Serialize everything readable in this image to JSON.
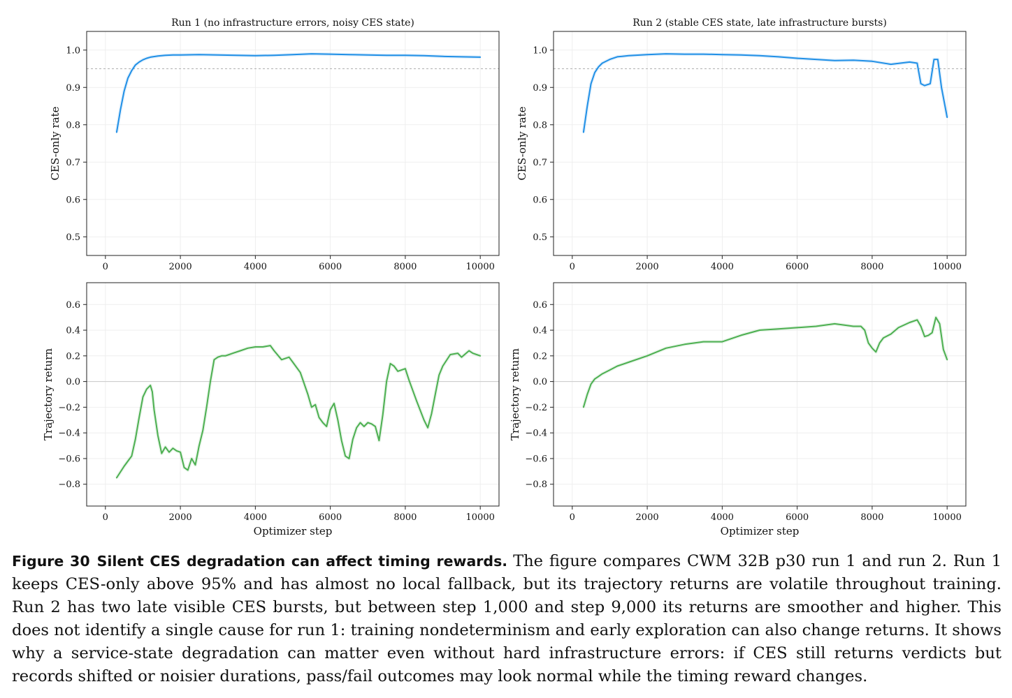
{
  "chart_data": [
    {
      "type": "line",
      "title": "Run 1 (no infrastructure errors, noisy CES state)",
      "xlabel": "",
      "ylabel": "CES-only rate",
      "xlim": [
        -500,
        10500
      ],
      "ylim": [
        0.45,
        1.05
      ],
      "xticks": [
        "0",
        "2000",
        "4000",
        "6000",
        "8000",
        "10000"
      ],
      "yticks": [
        "0.5",
        "0.6",
        "0.7",
        "0.8",
        "0.9",
        "1.0"
      ],
      "grid": true,
      "reference_line": 0.95,
      "series": [
        {
          "name": "",
          "color": "#1f8fe6",
          "x": [
            300,
            400,
            500,
            600,
            700,
            800,
            900,
            1000,
            1100,
            1200,
            1400,
            1600,
            1800,
            2000,
            2500,
            3000,
            3500,
            4000,
            4500,
            5000,
            5500,
            6000,
            6500,
            7000,
            7500,
            8000,
            8500,
            9000,
            9500,
            10000
          ],
          "y": [
            0.78,
            0.84,
            0.89,
            0.925,
            0.945,
            0.96,
            0.968,
            0.974,
            0.978,
            0.981,
            0.984,
            0.986,
            0.987,
            0.987,
            0.988,
            0.987,
            0.986,
            0.985,
            0.986,
            0.988,
            0.99,
            0.989,
            0.988,
            0.987,
            0.986,
            0.986,
            0.985,
            0.983,
            0.982,
            0.981
          ]
        }
      ]
    },
    {
      "type": "line",
      "title": "Run 2 (stable CES state, late infrastructure bursts)",
      "xlabel": "",
      "ylabel": "CES-only rate",
      "xlim": [
        -500,
        10500
      ],
      "ylim": [
        0.45,
        1.05
      ],
      "xticks": [
        "0",
        "2000",
        "4000",
        "6000",
        "8000",
        "10000"
      ],
      "yticks": [
        "0.5",
        "0.6",
        "0.7",
        "0.8",
        "0.9",
        "1.0"
      ],
      "grid": true,
      "reference_line": 0.95,
      "series": [
        {
          "name": "",
          "color": "#1f8fe6",
          "x": [
            300,
            400,
            500,
            600,
            700,
            800,
            1000,
            1200,
            1500,
            2000,
            2500,
            3000,
            3500,
            4000,
            4500,
            5000,
            5500,
            6000,
            6500,
            7000,
            7500,
            8000,
            8500,
            9000,
            9200,
            9300,
            9400,
            9550,
            9650,
            9750,
            9850,
            10000
          ],
          "y": [
            0.78,
            0.85,
            0.91,
            0.94,
            0.955,
            0.965,
            0.975,
            0.982,
            0.985,
            0.988,
            0.99,
            0.989,
            0.989,
            0.988,
            0.987,
            0.985,
            0.982,
            0.978,
            0.975,
            0.972,
            0.973,
            0.97,
            0.962,
            0.968,
            0.965,
            0.91,
            0.905,
            0.91,
            0.975,
            0.975,
            0.9,
            0.82
          ]
        }
      ]
    },
    {
      "type": "line",
      "title": "",
      "xlabel": "Optimizer step",
      "ylabel": "Trajectory return",
      "xlim": [
        -500,
        10500
      ],
      "ylim": [
        -0.97,
        0.77
      ],
      "xticks": [
        "0",
        "2000",
        "4000",
        "6000",
        "8000",
        "10000"
      ],
      "yticks": [
        "−0.8",
        "−0.6",
        "−0.4",
        "−0.2",
        "0.0",
        "0.2",
        "0.4",
        "0.6"
      ],
      "grid": true,
      "reference_line": 0.0,
      "series": [
        {
          "name": "",
          "color": "#4caf50",
          "x": [
            300,
            500,
            600,
            700,
            800,
            900,
            1000,
            1100,
            1200,
            1250,
            1300,
            1400,
            1500,
            1600,
            1700,
            1800,
            1900,
            2000,
            2100,
            2200,
            2300,
            2400,
            2500,
            2600,
            2700,
            2800,
            2900,
            3000,
            3100,
            3200,
            3400,
            3600,
            3800,
            4000,
            4200,
            4400,
            4500,
            4700,
            4900,
            5000,
            5200,
            5400,
            5500,
            5600,
            5700,
            5800,
            5900,
            6000,
            6100,
            6200,
            6300,
            6400,
            6500,
            6600,
            6700,
            6800,
            6900,
            7000,
            7100,
            7200,
            7300,
            7400,
            7500,
            7600,
            7700,
            7800,
            7900,
            8000,
            8100,
            8300,
            8500,
            8600,
            8700,
            8800,
            8900,
            9000,
            9200,
            9400,
            9500,
            9700,
            9800,
            10000
          ],
          "y": [
            -0.75,
            -0.66,
            -0.62,
            -0.58,
            -0.45,
            -0.28,
            -0.12,
            -0.06,
            -0.03,
            -0.08,
            -0.22,
            -0.42,
            -0.56,
            -0.51,
            -0.55,
            -0.52,
            -0.54,
            -0.55,
            -0.67,
            -0.69,
            -0.6,
            -0.65,
            -0.5,
            -0.38,
            -0.2,
            0.0,
            0.17,
            0.19,
            0.2,
            0.2,
            0.22,
            0.24,
            0.26,
            0.27,
            0.27,
            0.28,
            0.24,
            0.17,
            0.19,
            0.15,
            0.07,
            -0.1,
            -0.2,
            -0.18,
            -0.28,
            -0.32,
            -0.35,
            -0.22,
            -0.17,
            -0.3,
            -0.46,
            -0.58,
            -0.6,
            -0.45,
            -0.36,
            -0.32,
            -0.35,
            -0.32,
            -0.33,
            -0.35,
            -0.46,
            -0.26,
            0.0,
            0.14,
            0.12,
            0.08,
            0.09,
            0.1,
            0.01,
            -0.15,
            -0.3,
            -0.36,
            -0.25,
            -0.1,
            0.05,
            0.12,
            0.21,
            0.22,
            0.19,
            0.24,
            0.22,
            0.2
          ]
        }
      ]
    },
    {
      "type": "line",
      "title": "",
      "xlabel": "Optimizer step",
      "ylabel": "Trajectory return",
      "xlim": [
        -500,
        10500
      ],
      "ylim": [
        -0.97,
        0.77
      ],
      "xticks": [
        "0",
        "2000",
        "4000",
        "6000",
        "8000",
        "10000"
      ],
      "yticks": [
        "−0.8",
        "−0.6",
        "−0.4",
        "−0.2",
        "0.0",
        "0.2",
        "0.4",
        "0.6"
      ],
      "grid": true,
      "reference_line": 0.0,
      "series": [
        {
          "name": "",
          "color": "#4caf50",
          "x": [
            300,
            400,
            500,
            600,
            700,
            800,
            1000,
            1200,
            1500,
            2000,
            2500,
            3000,
            3500,
            4000,
            4500,
            5000,
            5500,
            6000,
            6500,
            7000,
            7500,
            7700,
            7800,
            7900,
            8000,
            8100,
            8200,
            8300,
            8500,
            8700,
            9000,
            9200,
            9300,
            9400,
            9500,
            9600,
            9700,
            9800,
            9900,
            10000
          ],
          "y": [
            -0.2,
            -0.1,
            -0.02,
            0.02,
            0.04,
            0.06,
            0.09,
            0.12,
            0.15,
            0.2,
            0.26,
            0.29,
            0.31,
            0.31,
            0.36,
            0.4,
            0.41,
            0.42,
            0.43,
            0.45,
            0.43,
            0.43,
            0.4,
            0.3,
            0.26,
            0.23,
            0.3,
            0.34,
            0.37,
            0.42,
            0.46,
            0.48,
            0.43,
            0.35,
            0.36,
            0.38,
            0.5,
            0.45,
            0.25,
            0.17
          ]
        }
      ]
    }
  ],
  "caption": {
    "label": "Figure 30",
    "title": "Silent CES degradation can affect timing rewards.",
    "text": "The figure compares CWM 32B p30 run 1 and run 2. Run 1 keeps CES-only above 95% and has almost no local fallback, but its trajectory returns are volatile throughout training. Run 2 has two late visible CES bursts, but between step 1,000 and step 9,000 its returns are smoother and higher. This does not identify a single cause for run 1: training nondeterminism and early exploration can also change returns. It shows why a service-state degradation can matter even without hard infrastructure errors: if CES still returns verdicts but records shifted or noisier durations, pass/fail outcomes may look normal while the timing reward changes."
  }
}
